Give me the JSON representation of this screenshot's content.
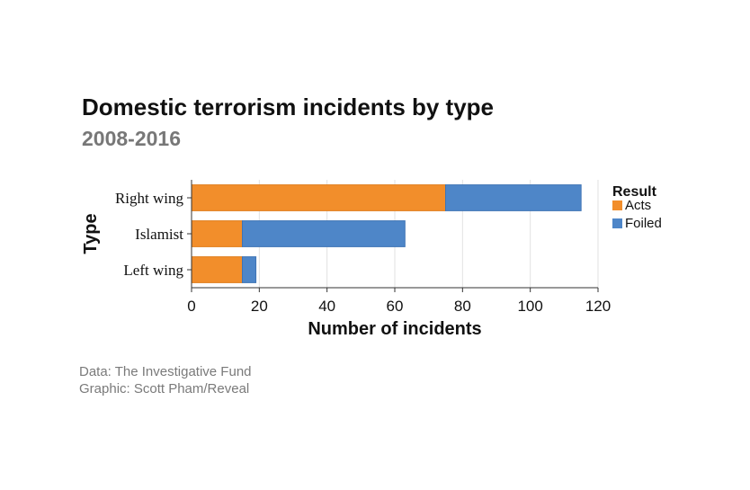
{
  "title": "Domestic terrorism incidents by type",
  "subtitle": "2008-2016",
  "credits": {
    "data": "Data: The Investigative Fund",
    "graphic": "Graphic: Scott Pham/Reveal"
  },
  "chart_data": {
    "type": "bar",
    "orientation": "horizontal",
    "stacked": true,
    "categories": [
      "Right wing",
      "Islamist",
      "Left wing"
    ],
    "series": [
      {
        "name": "Acts",
        "values": [
          75,
          15,
          15
        ],
        "color": "#f28e2b"
      },
      {
        "name": "Foiled",
        "values": [
          40,
          48,
          4
        ],
        "color": "#4e86c8"
      }
    ],
    "xlabel": "Number of incidents",
    "ylabel": "Type",
    "xlim": [
      0,
      120
    ],
    "xticks": [
      0,
      20,
      40,
      60,
      80,
      100,
      120
    ],
    "grid": "vertical",
    "legend": {
      "title": "Result",
      "placement": "right"
    }
  }
}
